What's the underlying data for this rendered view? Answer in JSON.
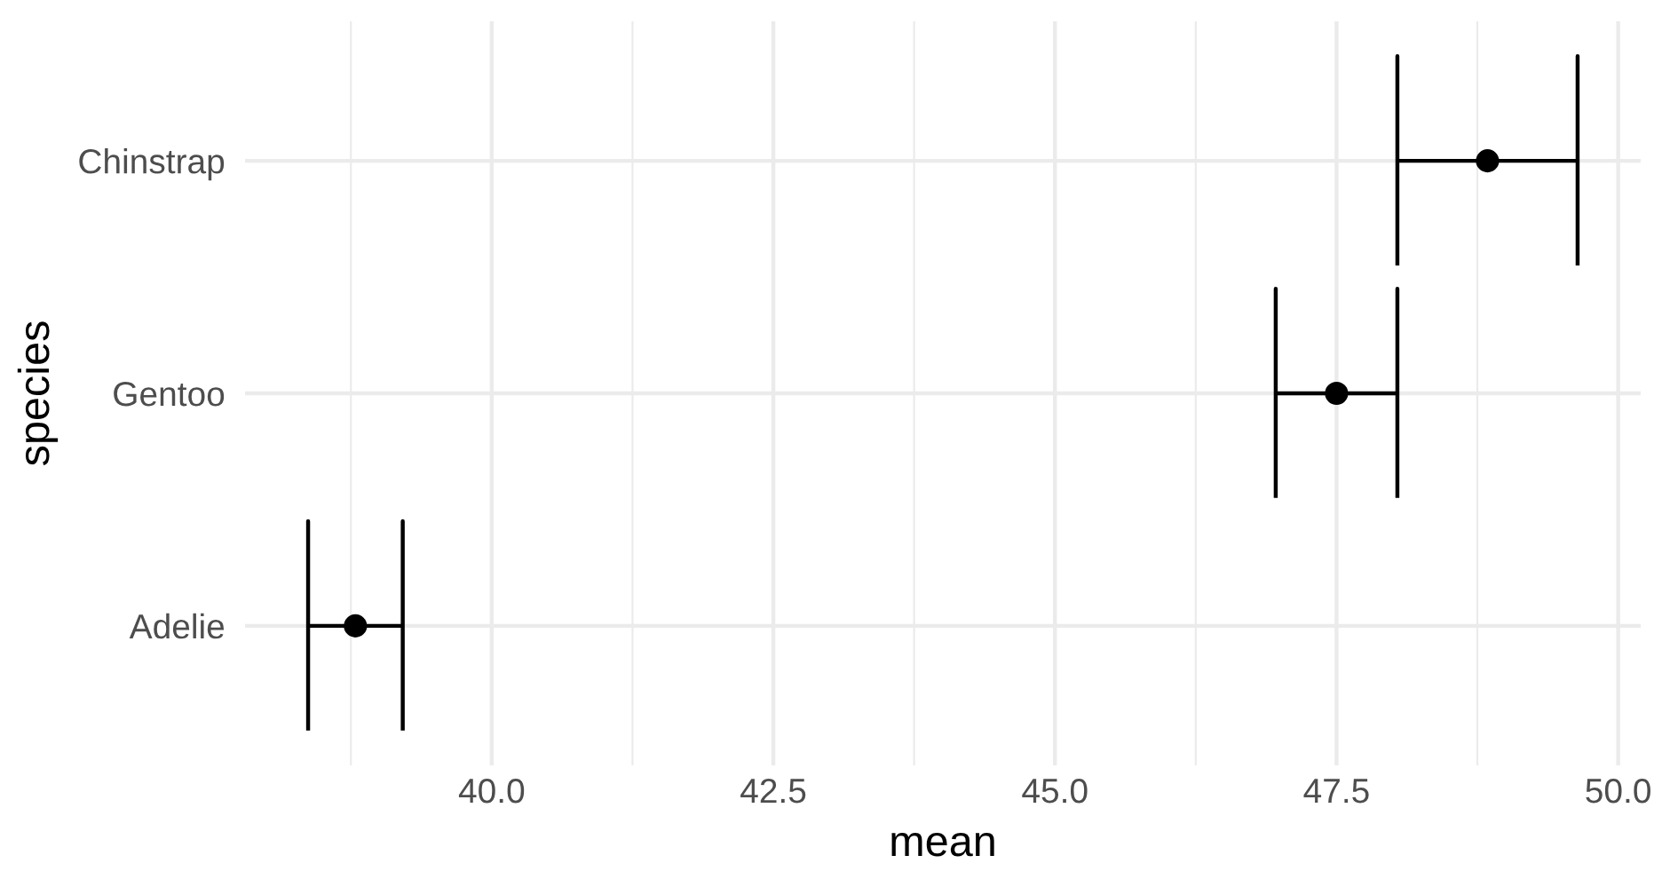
{
  "chart_data": {
    "type": "scatter",
    "orientation": "horizontal",
    "categories": [
      "Chinstrap",
      "Gentoo",
      "Adelie"
    ],
    "values": [
      48.84,
      47.5,
      38.79
    ],
    "errors": [
      0.8,
      0.54,
      0.42
    ],
    "color": "#000000",
    "marker": "circle",
    "xlabel": "mean",
    "ylabel": "species",
    "xlim": [
      37.81,
      50.2
    ],
    "xticks": [
      {
        "value": 40,
        "label": "40.0"
      },
      {
        "value": 42.5,
        "label": "42.5"
      },
      {
        "value": 45,
        "label": "45.0"
      },
      {
        "value": 47.5,
        "label": "47.5"
      },
      {
        "value": 50,
        "label": "50.0"
      }
    ],
    "grid": true
  }
}
